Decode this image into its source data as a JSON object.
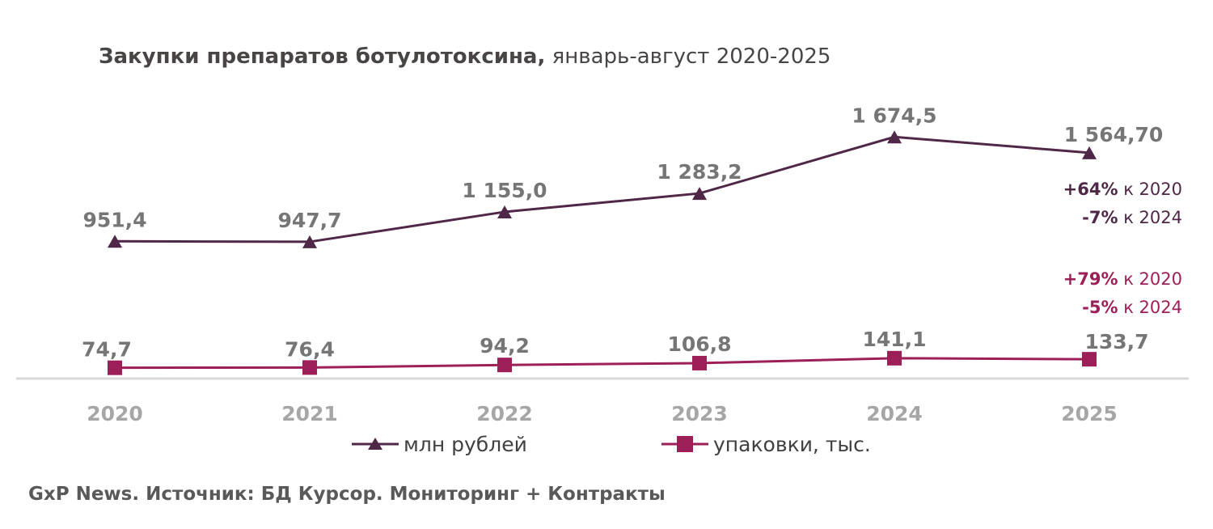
{
  "chart_data": {
    "type": "line",
    "title": "Закупки препаратов ботулотоксина,",
    "subtitle": " январь-август 2020-2025",
    "categories": [
      "2020",
      "2021",
      "2022",
      "2023",
      "2024",
      "2025"
    ],
    "series": [
      {
        "name": "млн рублей",
        "color": "#4f2848",
        "marker": "triangle",
        "values": [
          951.4,
          947.7,
          1155.0,
          1283.2,
          1674.5,
          1564.7
        ],
        "labels": [
          "951,4",
          "947,7",
          "1 155,0",
          "1 283,2",
          "1 674,5",
          "1 564,70"
        ]
      },
      {
        "name": "упаковки, тыс.",
        "color": "#9c1f58",
        "marker": "square",
        "values": [
          74.7,
          76.4,
          94.2,
          106.8,
          141.1,
          133.7
        ],
        "labels": [
          "74,7",
          "76,4",
          "94,2",
          "106,8",
          "141,1",
          "133,7"
        ]
      }
    ],
    "annotations": [
      {
        "bold": "+64%",
        "text": " к 2020",
        "color": "#4f2848"
      },
      {
        "bold": "-7%",
        "text": " к 2024",
        "color": "#4f2848"
      },
      {
        "bold": "+79%",
        "text": " к 2020",
        "color": "#9c1f58"
      },
      {
        "bold": "-5%",
        "text": " к 2024",
        "color": "#9c1f58"
      }
    ],
    "grid": false,
    "legend": "bottom"
  },
  "source": "GxP News. Источник: БД Курсор. Мониторинг + Контракты"
}
